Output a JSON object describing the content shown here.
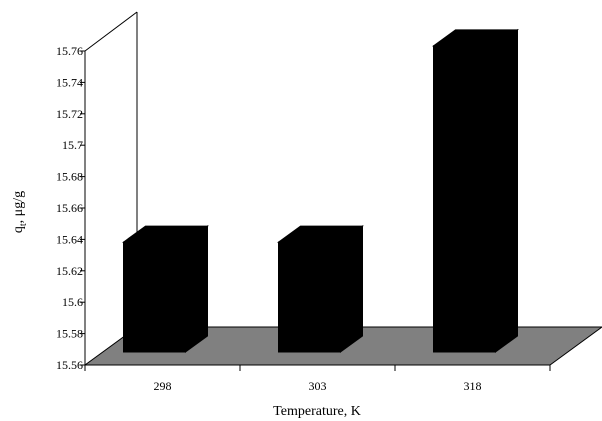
{
  "chart_data": {
    "type": "bar",
    "style": "3d",
    "categories": [
      "298",
      "303",
      "318"
    ],
    "values": [
      15.63,
      15.63,
      15.755
    ],
    "xlabel": "Temperature, K",
    "ylabel_main": "q",
    "ylabel_sub": "t",
    "ylabel_rest": ", μg/g",
    "ylim": [
      15.56,
      15.76
    ],
    "yticks": [
      "15.56",
      "15.58",
      "15.6",
      "15.62",
      "15.64",
      "15.66",
      "15.68",
      "15.7",
      "15.72",
      "15.74",
      "15.76"
    ],
    "grid": false,
    "legend": "none",
    "colors": {
      "bar": "#000000",
      "floor": "#808080",
      "axis": "#000000"
    }
  }
}
